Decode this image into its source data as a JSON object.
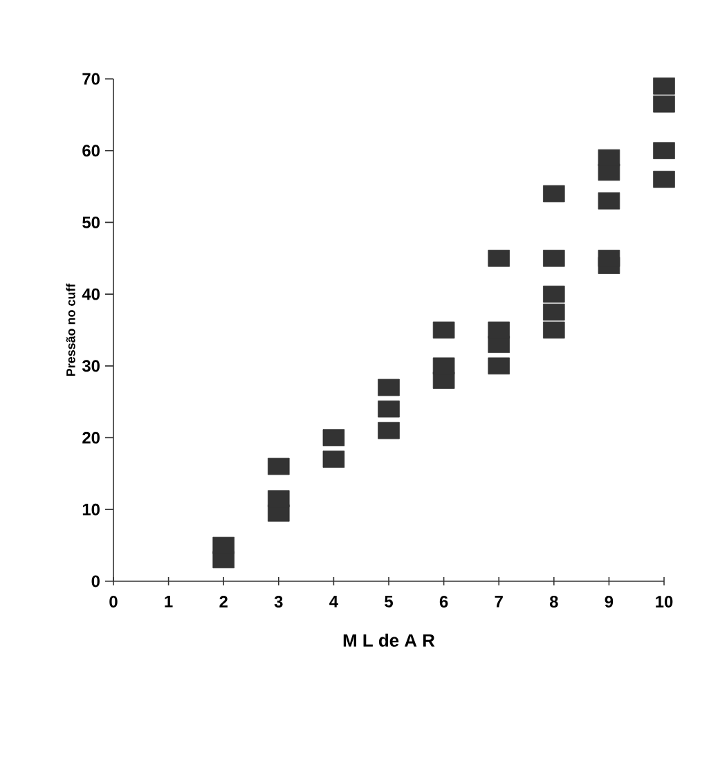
{
  "chart_data": {
    "type": "scatter",
    "xlabel": "M L de A R",
    "ylabel": "Pressão no cuff",
    "x": [
      2,
      2,
      3,
      3,
      3,
      4,
      4,
      5,
      5,
      5,
      6,
      6,
      6,
      7,
      7,
      7,
      7,
      8,
      8,
      8,
      8,
      8,
      9,
      9,
      9,
      9,
      9,
      10,
      10,
      10,
      10
    ],
    "series": [
      {
        "color": "#333333",
        "values": [
          3,
          5,
          16,
          9.5,
          11.5,
          17,
          20,
          21,
          24,
          27,
          35,
          28,
          30,
          45,
          30,
          33,
          35,
          54,
          45,
          35,
          37.5,
          40,
          57,
          59,
          53,
          44,
          45,
          66.5,
          69,
          60,
          56
        ]
      }
    ],
    "xlim": [
      0,
      10
    ],
    "ylim": [
      0,
      70
    ],
    "xticks": [
      0,
      1,
      2,
      3,
      4,
      5,
      6,
      7,
      8,
      9,
      10
    ],
    "yticks": [
      0,
      10,
      20,
      30,
      40,
      50,
      60,
      70
    ],
    "marker": "square",
    "grid": false
  }
}
